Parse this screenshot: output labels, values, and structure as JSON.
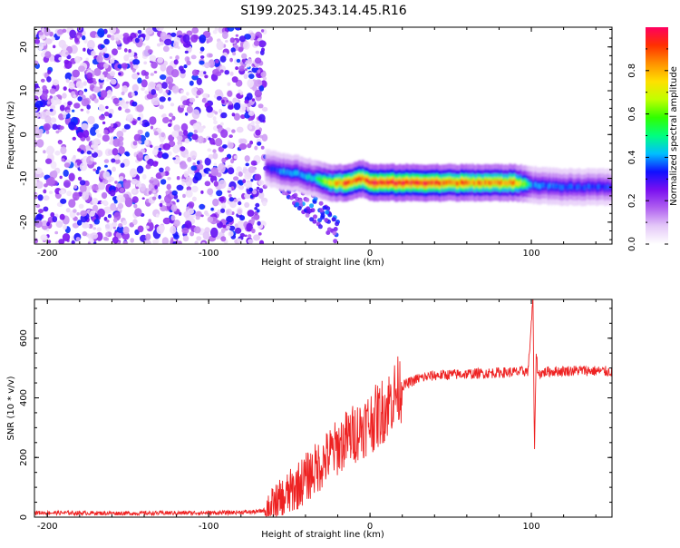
{
  "chart_data": [
    {
      "type": "heatmap",
      "title": "S199.2025.343.14.45.R16",
      "xlabel": "Height of straight line (km)",
      "ylabel": "Frequency (Hz)",
      "xlim": [
        -208,
        150
      ],
      "ylim": [
        -25,
        24.5
      ],
      "xticks": [
        -200,
        -100,
        0,
        100
      ],
      "yticks": [
        -20,
        -10,
        0,
        10,
        20
      ],
      "grid": false,
      "colorbar": {
        "label": "Normalized spectral amplitude",
        "range": [
          0,
          1
        ],
        "ticks": [
          0.0,
          0.2,
          0.4,
          0.6,
          0.8
        ],
        "tick_labels": [
          "0.0",
          "0.2",
          "0.4",
          "0.6",
          "0.8"
        ],
        "colors": [
          "#ffffff",
          "#e4c8f8",
          "#b060f0",
          "#7a10f0",
          "#1010ff",
          "#00bfff",
          "#00ff7f",
          "#30ff00",
          "#c0ff00",
          "#ffe000",
          "#ff9000",
          "#ff3000",
          "#ff0060"
        ]
      },
      "noise_region_x": [
        -208,
        -65
      ],
      "band": {
        "x": [
          -65,
          -55,
          -45,
          -35,
          -25,
          -15,
          -5,
          0,
          10,
          30,
          60,
          90,
          100,
          120,
          150
        ],
        "frequency": [
          -7.5,
          -8.5,
          -9,
          -10,
          -11,
          -11,
          -10,
          -11,
          -11,
          -11,
          -11,
          -11,
          -11.5,
          -12,
          -12
        ],
        "amplitude": [
          0.3,
          0.4,
          0.4,
          0.45,
          0.7,
          0.9,
          0.85,
          0.9,
          0.95,
          0.9,
          0.85,
          0.8,
          0.4,
          0.35,
          0.35
        ]
      }
    },
    {
      "type": "line",
      "xlabel": "Height of straight line (km)",
      "ylabel": "SNR (10 * v/v)",
      "xlim": [
        -208,
        150
      ],
      "ylim": [
        0,
        730
      ],
      "xticks": [
        -200,
        -100,
        0,
        100
      ],
      "yticks": [
        0,
        200,
        400,
        600
      ],
      "grid": false,
      "series": [
        {
          "name": "SNR",
          "color": "#ee2222",
          "x": [
            -208,
            -180,
            -150,
            -120,
            -90,
            -70,
            -60,
            -50,
            -40,
            -30,
            -25,
            -20,
            -15,
            -10,
            -5,
            0,
            5,
            10,
            15,
            20,
            30,
            40,
            50,
            60,
            70,
            80,
            90,
            98,
            101,
            102,
            103,
            104,
            110,
            120,
            130,
            140,
            150
          ],
          "values": [
            15,
            14,
            13,
            14,
            15,
            18,
            30,
            80,
            130,
            180,
            210,
            235,
            260,
            280,
            300,
            320,
            340,
            370,
            410,
            440,
            465,
            475,
            478,
            480,
            482,
            485,
            486,
            490,
            730,
            210,
            560,
            480,
            488,
            490,
            492,
            490,
            488
          ]
        }
      ]
    }
  ]
}
